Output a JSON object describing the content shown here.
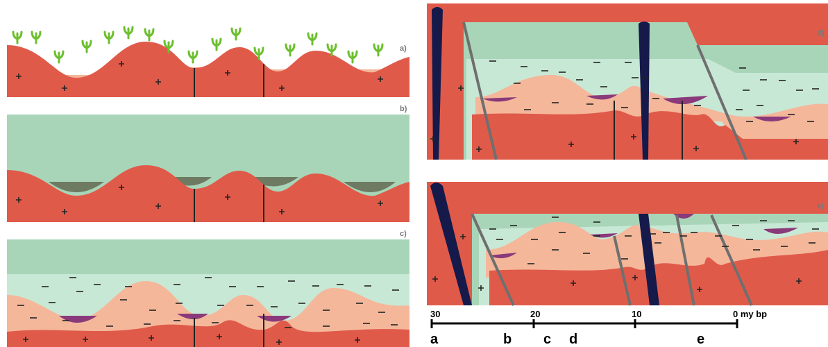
{
  "panels": [
    {
      "label": "a)"
    },
    {
      "label": "b)"
    },
    {
      "label": "c)"
    },
    {
      "label": "d)"
    },
    {
      "label": "e)"
    }
  ],
  "scale": {
    "ticks": [
      "30",
      "20",
      "10",
      "0 my bp"
    ],
    "stages": [
      "a",
      "b",
      "c",
      "d",
      "e"
    ]
  }
}
